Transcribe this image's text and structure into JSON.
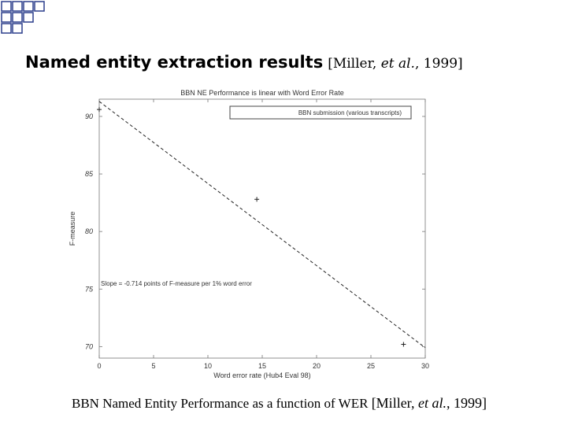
{
  "slide": {
    "title": "Named entity extraction results",
    "title_cite_pre": "[Miller, ",
    "title_cite_etal": "et al.",
    "title_cite_post": ", 1999]",
    "caption": "BBN Named Entity Performance as a function of WER",
    "caption_cite_pre": "[Miller, ",
    "caption_cite_etal": "et al.",
    "caption_cite_post": ", 1999]",
    "decor_color": "#2b3e8c"
  },
  "chart_data": {
    "type": "line",
    "title": "BBN NE Performance is linear with Word Error Rate",
    "xlabel": "Word error rate (Hub4 Eval 98)",
    "ylabel": "F-measure",
    "xlim": [
      0,
      30
    ],
    "ylim": [
      69,
      91.5
    ],
    "xticks": [
      0,
      5,
      10,
      15,
      20,
      25,
      30
    ],
    "yticks": [
      70,
      75,
      80,
      85,
      90
    ],
    "grid": false,
    "legend": {
      "position": "top-right",
      "entry": "BBN submission (various transcripts)"
    },
    "annotation": "Slope = -0.714 points of F-measure per 1% word error",
    "series": [
      {
        "name": "BBN submission (various transcripts)",
        "style": "dashed",
        "x": [
          0,
          30
        ],
        "y": [
          91.3,
          69.9
        ]
      }
    ],
    "points": [
      {
        "x": 0,
        "y": 90.6,
        "marker": "+"
      },
      {
        "x": 14.5,
        "y": 82.8,
        "marker": "+"
      },
      {
        "x": 28,
        "y": 70.2,
        "marker": "+"
      }
    ]
  }
}
